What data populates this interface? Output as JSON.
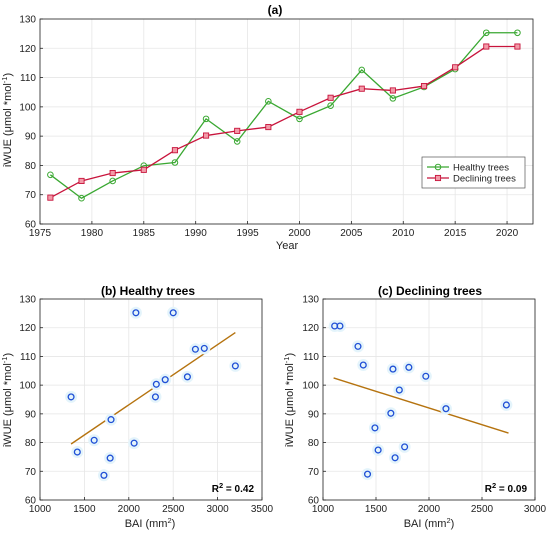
{
  "chart_data": [
    {
      "type": "line",
      "title": "(a)",
      "xlabel": "Year",
      "ylabel": "iWUE (μmol *mol",
      "ylabel_sup": "-1",
      "ylabel_close": ")",
      "xlim": [
        1975,
        2022.5
      ],
      "ylim": [
        60,
        130
      ],
      "xticks": [
        "1975",
        "1980",
        "1985",
        "1990",
        "1995",
        "2000",
        "2005",
        "2010",
        "2015",
        "2020"
      ],
      "yticks": [
        "60",
        "70",
        "80",
        "90",
        "100",
        "110",
        "120",
        "130"
      ],
      "legend_position": "lower-right",
      "series": [
        {
          "name": "Healthy trees",
          "color": "#3aa832",
          "marker": "circle",
          "x": [
            1976,
            1979,
            1982,
            1985,
            1988,
            1991,
            1994,
            1997,
            2000,
            2003,
            2006,
            2009,
            2012,
            2015,
            2018,
            2021
          ],
          "y": [
            76.8,
            68.8,
            74.7,
            79.9,
            81.0,
            95.9,
            88.2,
            101.9,
            95.9,
            100.4,
            112.6,
            102.9,
            106.8,
            112.9,
            125.3,
            125.3
          ]
        },
        {
          "name": "Declining trees",
          "color": "#c8143c",
          "marker": "square",
          "x": [
            1976,
            1979,
            1982,
            1985,
            1988,
            1991,
            1994,
            1997,
            2000,
            2003,
            2006,
            2009,
            2012,
            2015,
            2018,
            2021
          ],
          "y": [
            69.0,
            74.7,
            77.4,
            78.5,
            85.2,
            90.2,
            91.8,
            93.1,
            98.3,
            103.1,
            106.2,
            105.6,
            107.1,
            113.5,
            120.6,
            120.6
          ]
        }
      ]
    },
    {
      "type": "scatter",
      "title": "(b) Healthy trees",
      "xlabel": "BAI (mm",
      "xlabel_sup": "2",
      "xlabel_close": ")",
      "ylabel": "iWUE (μmol *mol",
      "ylabel_sup": "-1",
      "ylabel_close": ")",
      "xlim": [
        1000,
        3500
      ],
      "ylim": [
        60,
        130
      ],
      "xticks": [
        "1000",
        "1500",
        "2000",
        "2500",
        "3000",
        "3500"
      ],
      "yticks": [
        "60",
        "70",
        "80",
        "90",
        "100",
        "110",
        "120",
        "130"
      ],
      "r2_label": "R",
      "r2_sup": "2",
      "r2_value": " = 0.42",
      "trend": {
        "x": [
          1350,
          3200
        ],
        "y": [
          79.5,
          118.3
        ],
        "color": "#b5730f"
      },
      "points": {
        "color": "#1f4fd6",
        "x": [
          1350,
          1420,
          1610,
          1720,
          1790,
          1800,
          2060,
          2080,
          2300,
          2310,
          2410,
          2500,
          2660,
          2750,
          2850,
          3200
        ],
        "y": [
          95.9,
          76.7,
          80.8,
          68.6,
          74.6,
          88.0,
          79.8,
          125.2,
          95.9,
          100.3,
          101.9,
          125.2,
          102.9,
          112.5,
          112.8,
          106.7
        ]
      }
    },
    {
      "type": "scatter",
      "title": "(c) Declining trees",
      "xlabel": "BAI (mm",
      "xlabel_sup": "2",
      "xlabel_close": ")",
      "ylabel": "iWUE (μmol *mol",
      "ylabel_sup": "-1",
      "ylabel_close": ")",
      "xlim": [
        1000,
        3000
      ],
      "ylim": [
        60,
        130
      ],
      "xticks": [
        "1000",
        "1500",
        "2000",
        "2500",
        "3000"
      ],
      "yticks": [
        "60",
        "70",
        "80",
        "90",
        "100",
        "110",
        "120",
        "130"
      ],
      "r2_label": "R",
      "r2_sup": "2",
      "r2_value": " = 0.09",
      "trend": {
        "x": [
          1100,
          2750
        ],
        "y": [
          102.5,
          83.3
        ],
        "color": "#b5730f"
      },
      "points": {
        "color": "#1f4fd6",
        "x": [
          1110,
          1160,
          1330,
          1380,
          1420,
          1490,
          1520,
          1640,
          1660,
          1680,
          1720,
          1770,
          1810,
          1970,
          2160,
          2730
        ],
        "y": [
          120.6,
          120.6,
          113.5,
          107.0,
          69.0,
          85.1,
          77.4,
          90.2,
          105.6,
          74.7,
          98.3,
          78.5,
          106.2,
          103.1,
          91.8,
          93.1
        ]
      }
    }
  ]
}
